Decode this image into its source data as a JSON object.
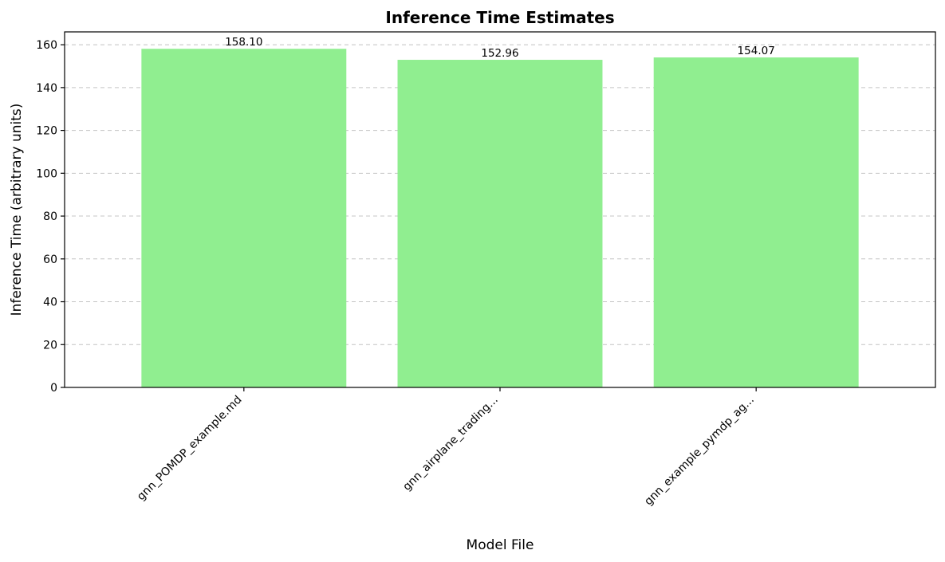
{
  "chart_data": {
    "type": "bar",
    "title": "Inference Time Estimates",
    "xlabel": "Model File",
    "ylabel": "Inference Time (arbitrary units)",
    "categories": [
      "gnn_POMDP_example.md",
      "gnn_airplane_trading...",
      "gnn_example_pymdp_ag..."
    ],
    "values": [
      158.1,
      152.96,
      154.07
    ],
    "data_labels": [
      "158.10",
      "152.96",
      "154.07"
    ],
    "ylim": [
      0,
      166
    ],
    "yticks": [
      0,
      20,
      40,
      60,
      80,
      100,
      120,
      140,
      160
    ],
    "grid": "y-dashed",
    "bar_color": "#90ee90",
    "legend": "none"
  }
}
